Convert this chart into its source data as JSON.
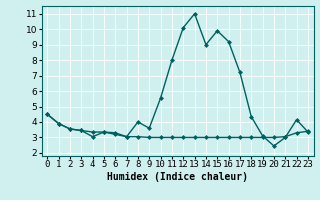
{
  "x": [
    0,
    1,
    2,
    3,
    4,
    5,
    6,
    7,
    8,
    9,
    10,
    11,
    12,
    13,
    14,
    15,
    16,
    17,
    18,
    19,
    20,
    21,
    22,
    23
  ],
  "line1": [
    4.5,
    3.9,
    3.55,
    3.45,
    3.05,
    3.35,
    3.3,
    3.05,
    4.0,
    3.6,
    5.55,
    8.0,
    10.1,
    11.0,
    9.0,
    9.9,
    9.2,
    7.2,
    4.35,
    3.1,
    2.45,
    3.0,
    4.15,
    3.35
  ],
  "line2": [
    4.5,
    3.9,
    3.55,
    3.45,
    3.35,
    3.35,
    3.2,
    3.05,
    3.05,
    3.0,
    3.0,
    3.0,
    3.0,
    3.0,
    3.0,
    3.0,
    3.0,
    3.0,
    3.0,
    3.0,
    3.0,
    3.05,
    3.3,
    3.4
  ],
  "line_color": "#006060",
  "marker": "D",
  "markersize": 2.0,
  "bg_color": "#d0f0f0",
  "grid_color": "#ffffff",
  "xlabel": "Humidex (Indice chaleur)",
  "xlabel_fontsize": 7,
  "xtick_labels": [
    "0",
    "1",
    "2",
    "3",
    "4",
    "5",
    "6",
    "7",
    "8",
    "9",
    "10",
    "11",
    "12",
    "13",
    "14",
    "15",
    "16",
    "17",
    "18",
    "19",
    "20",
    "21",
    "22",
    "23"
  ],
  "ylim": [
    1.8,
    11.5
  ],
  "yticks": [
    2,
    3,
    4,
    5,
    6,
    7,
    8,
    9,
    10,
    11
  ],
  "xlim": [
    -0.5,
    23.5
  ],
  "tick_fontsize": 6.5,
  "linewidth": 1.0
}
